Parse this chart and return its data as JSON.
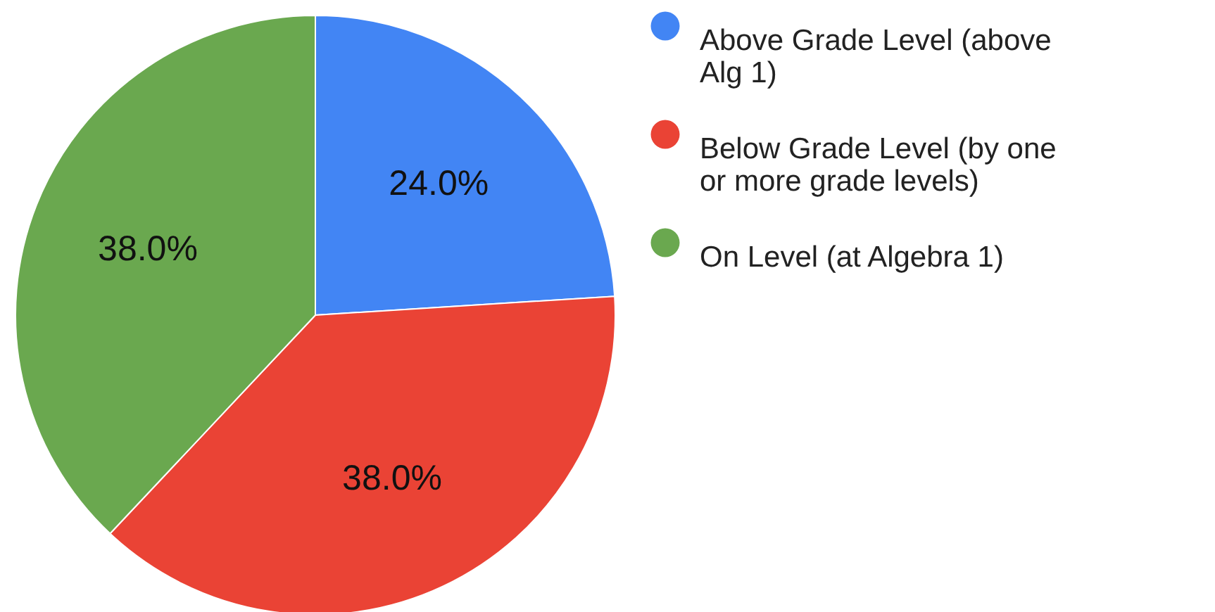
{
  "chart_data": {
    "type": "pie",
    "categories": [
      "Above Grade Level (above Alg 1)",
      "Below Grade Level (by one or more grade levels)",
      "On Level (at Algebra 1)"
    ],
    "values": [
      24,
      38,
      38
    ],
    "colors": [
      "#4285f4",
      "#ea4335",
      "#6aa84f"
    ],
    "value_labels": [
      "24.0%",
      "38.0%",
      "38.0%"
    ],
    "legend": "top right"
  }
}
